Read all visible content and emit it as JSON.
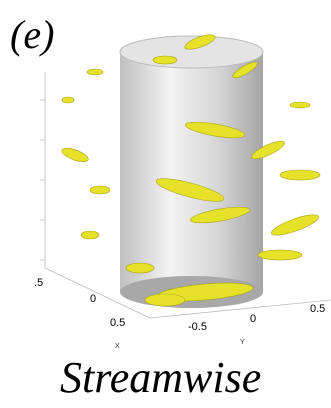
{
  "panel_label": "(e)",
  "caption": "Streamwise",
  "axes": {
    "x_label": "X",
    "y_label": "Y",
    "x_ticks": [
      ".5",
      "0",
      "0.5"
    ],
    "y_ticks": [
      "-0.5",
      "0",
      "0.5"
    ]
  }
}
